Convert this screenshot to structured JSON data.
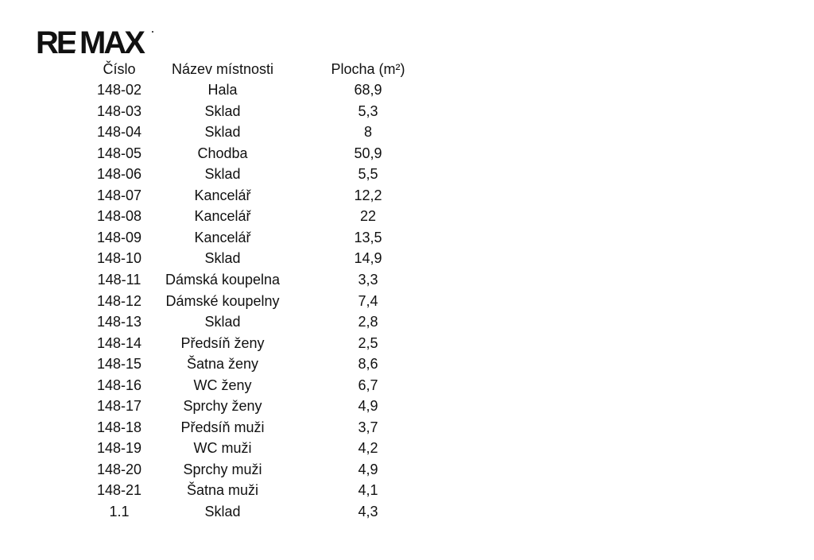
{
  "logo": {
    "text": "RE/MAX",
    "color": "#111111"
  },
  "table": {
    "headers": {
      "number": "Číslo",
      "name": "Název místnosti",
      "area": "Plocha (m²)"
    },
    "rows": [
      {
        "number": "148-02",
        "name": "Hala",
        "area": "68,9"
      },
      {
        "number": "148-03",
        "name": "Sklad",
        "area": "5,3"
      },
      {
        "number": "148-04",
        "name": "Sklad",
        "area": "8"
      },
      {
        "number": "148-05",
        "name": "Chodba",
        "area": "50,9"
      },
      {
        "number": "148-06",
        "name": "Sklad",
        "area": "5,5"
      },
      {
        "number": "148-07",
        "name": "Kancelář",
        "area": "12,2"
      },
      {
        "number": "148-08",
        "name": "Kancelář",
        "area": "22"
      },
      {
        "number": "148-09",
        "name": "Kancelář",
        "area": "13,5"
      },
      {
        "number": "148-10",
        "name": "Sklad",
        "area": "14,9"
      },
      {
        "number": "148-11",
        "name": "Dámská koupelna",
        "area": "3,3"
      },
      {
        "number": "148-12",
        "name": "Dámské koupelny",
        "area": "7,4"
      },
      {
        "number": "148-13",
        "name": "Sklad",
        "area": "2,8"
      },
      {
        "number": "148-14",
        "name": "Předsíň ženy",
        "area": "2,5"
      },
      {
        "number": "148-15",
        "name": "Šatna ženy",
        "area": "8,6"
      },
      {
        "number": "148-16",
        "name": "WC ženy",
        "area": "6,7"
      },
      {
        "number": "148-17",
        "name": "Sprchy ženy",
        "area": "4,9"
      },
      {
        "number": "148-18",
        "name": "Předsíň muži",
        "area": "3,7"
      },
      {
        "number": "148-19",
        "name": "WC muži",
        "area": "4,2"
      },
      {
        "number": "148-20",
        "name": "Sprchy muži",
        "area": "4,9"
      },
      {
        "number": "148-21",
        "name": "Šatna muži",
        "area": "4,1"
      },
      {
        "number": "1.1",
        "name": "Sklad",
        "area": "4,3"
      }
    ]
  }
}
